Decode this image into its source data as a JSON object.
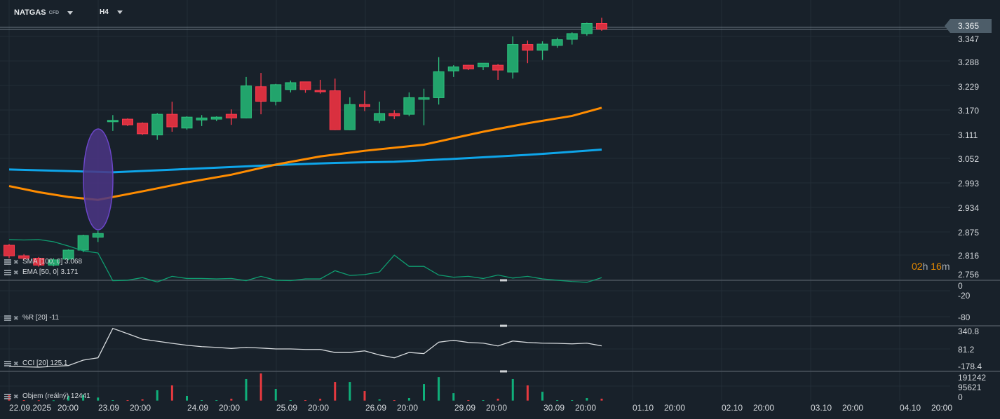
{
  "header": {
    "symbol": "NATGAS",
    "symbol_type": "CFD",
    "timeframe": "H4"
  },
  "colors": {
    "background": "#18212a",
    "up": "#22a46c",
    "down": "#d9303f",
    "sma": "#0ea5e9",
    "ema": "#ff8c00",
    "williams": "#0f9d70",
    "cci": "#d8dcdf",
    "ellipse": "#4b3585"
  },
  "price_axis": {
    "ticks": [
      "3.347",
      "3.288",
      "3.229",
      "3.170",
      "3.111",
      "3.052",
      "2.993",
      "2.934",
      "2.875",
      "2.816",
      "2.756"
    ],
    "current_price": "3.365"
  },
  "timer": {
    "hours": "02",
    "h": "h",
    "minutes": "16",
    "m": "m"
  },
  "legends": {
    "sma": "SMA [100, 0] 3.068",
    "ema": "EMA [50, 0] 3.171",
    "williams": "%R [20]  -11",
    "cci": "CCI [20]  125.1",
    "volume": "Objem  (reálný)  12441"
  },
  "williams_axis": [
    "0",
    "-20",
    "-80"
  ],
  "cci_axis": [
    "340.8",
    "81.2",
    "-178.4"
  ],
  "volume_axis": [
    "191242",
    "95621",
    "0"
  ],
  "time_axis": [
    {
      "date": "22.09.2025",
      "time": "20:00"
    },
    {
      "date": "23.09",
      "time": "20:00"
    },
    {
      "date": "24.09",
      "time": "20:00"
    },
    {
      "date": "25.09",
      "time": "20:00"
    },
    {
      "date": "26.09",
      "time": "20:00"
    },
    {
      "date": "29.09",
      "time": "20:00"
    },
    {
      "date": "30.09",
      "time": "20:00"
    },
    {
      "date": "01.10",
      "time": "20:00"
    },
    {
      "date": "02.10",
      "time": "20:00"
    },
    {
      "date": "03.10",
      "time": "20:00"
    },
    {
      "date": "04.10",
      "time": "20:00"
    }
  ],
  "chart_data": {
    "type": "candlestick",
    "ohlc": [
      [
        2.832,
        2.835,
        2.8,
        2.806
      ],
      [
        2.806,
        2.81,
        2.796,
        2.8
      ],
      [
        2.8,
        2.803,
        2.779,
        2.783
      ],
      [
        2.783,
        2.8,
        2.78,
        2.796
      ],
      [
        2.798,
        2.822,
        2.795,
        2.82
      ],
      [
        2.82,
        2.858,
        2.815,
        2.856
      ],
      [
        2.852,
        2.868,
        2.84,
        2.861
      ],
      [
        3.138,
        3.153,
        3.114,
        3.14
      ],
      [
        3.143,
        3.145,
        3.126,
        3.129
      ],
      [
        3.133,
        3.135,
        3.104,
        3.107
      ],
      [
        3.104,
        3.158,
        3.092,
        3.155
      ],
      [
        3.155,
        3.186,
        3.112,
        3.124
      ],
      [
        3.121,
        3.15,
        3.117,
        3.148
      ],
      [
        3.141,
        3.153,
        3.126,
        3.146
      ],
      [
        3.143,
        3.15,
        3.138,
        3.148
      ],
      [
        3.155,
        3.167,
        3.129,
        3.146
      ],
      [
        3.146,
        3.247,
        3.145,
        3.225
      ],
      [
        3.223,
        3.257,
        3.155,
        3.187
      ],
      [
        3.187,
        3.23,
        3.177,
        3.228
      ],
      [
        3.216,
        3.238,
        3.209,
        3.233
      ],
      [
        3.235,
        3.235,
        3.208,
        3.216
      ],
      [
        3.214,
        3.24,
        3.206,
        3.211
      ],
      [
        3.213,
        3.243,
        3.116,
        3.117
      ],
      [
        3.117,
        3.197,
        3.116,
        3.179
      ],
      [
        3.179,
        3.213,
        3.163,
        3.174
      ],
      [
        3.14,
        3.186,
        3.133,
        3.157
      ],
      [
        3.157,
        3.165,
        3.143,
        3.151
      ],
      [
        3.155,
        3.209,
        3.15,
        3.196
      ],
      [
        3.192,
        3.218,
        3.128,
        3.196
      ],
      [
        3.196,
        3.296,
        3.179,
        3.26
      ],
      [
        3.262,
        3.276,
        3.247,
        3.272
      ],
      [
        3.276,
        3.277,
        3.264,
        3.267
      ],
      [
        3.272,
        3.281,
        3.264,
        3.281
      ],
      [
        3.276,
        3.279,
        3.24,
        3.264
      ],
      [
        3.259,
        3.347,
        3.243,
        3.327
      ],
      [
        3.327,
        3.337,
        3.281,
        3.313
      ],
      [
        3.313,
        3.335,
        3.289,
        3.328
      ],
      [
        3.325,
        3.344,
        3.319,
        3.339
      ],
      [
        3.34,
        3.357,
        3.327,
        3.354
      ],
      [
        3.354,
        3.381,
        3.349,
        3.379
      ],
      [
        3.379,
        3.393,
        3.361,
        3.365
      ]
    ],
    "sma": [
      [
        0,
        3.019
      ],
      [
        6,
        3.013
      ],
      [
        7,
        3.012
      ],
      [
        12,
        3.02
      ],
      [
        18,
        3.03
      ],
      [
        22,
        3.035
      ],
      [
        26,
        3.038
      ],
      [
        30,
        3.045
      ],
      [
        35,
        3.055
      ],
      [
        37,
        3.06
      ],
      [
        40,
        3.068
      ]
    ],
    "ema": [
      [
        0,
        2.978
      ],
      [
        2,
        2.963
      ],
      [
        4,
        2.951
      ],
      [
        6,
        2.944
      ],
      [
        9,
        2.965
      ],
      [
        12,
        2.987
      ],
      [
        15,
        3.006
      ],
      [
        18,
        3.031
      ],
      [
        21,
        3.051
      ],
      [
        24,
        3.065
      ],
      [
        28,
        3.08
      ],
      [
        32,
        3.112
      ],
      [
        35,
        3.133
      ],
      [
        38,
        3.151
      ],
      [
        40,
        3.171
      ]
    ],
    "williams_r": [
      -99,
      -98,
      -99,
      -94,
      -84,
      -73,
      -68,
      -4,
      -5,
      -11,
      -1,
      -14,
      -9,
      -9,
      -8,
      -9,
      -4,
      -14,
      -5,
      -4,
      -8,
      -8,
      -27,
      -16,
      -18,
      -24,
      -63,
      -37,
      -37,
      -17,
      -12,
      -14,
      -9,
      -17,
      -10,
      -14,
      -8,
      -5,
      -2,
      0,
      -11
    ],
    "cci": [
      -168,
      -173,
      -178,
      -168,
      -155,
      -78,
      -45,
      374,
      298,
      221,
      191,
      161,
      134,
      114,
      104,
      88,
      104,
      94,
      81,
      81,
      74,
      74,
      31,
      31,
      54,
      -5,
      -45,
      31,
      15,
      178,
      204,
      174,
      164,
      124,
      194,
      174,
      164,
      161,
      154,
      164,
      125.1
    ],
    "volume": [
      39000,
      3000,
      2000,
      2000,
      31000,
      39000,
      20000,
      3000,
      3000,
      8000,
      68000,
      100000,
      31000,
      3000,
      3000,
      12000,
      142000,
      179000,
      77000,
      3000,
      3000,
      12000,
      123000,
      123000,
      63000,
      8000,
      3000,
      17000,
      109000,
      155000,
      49000,
      3000,
      3000,
      12000,
      142000,
      100000,
      58000,
      3000,
      3000,
      17000,
      12441
    ],
    "price_range": [
      2.756,
      3.393
    ],
    "williams_range": [
      -100,
      0
    ],
    "cci_range": [
      -178.4,
      340.8
    ],
    "volume_range": [
      0,
      191242
    ],
    "grid": true
  }
}
